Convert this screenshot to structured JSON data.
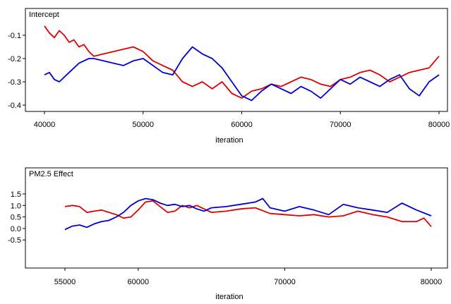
{
  "chart_data": [
    {
      "type": "line",
      "title": "Intercept",
      "xlabel": "iteration",
      "ylabel": "",
      "xlim": [
        40000,
        80000
      ],
      "ylim": [
        -0.45,
        0.0
      ],
      "xticks": [
        40000,
        50000,
        60000,
        70000,
        80000
      ],
      "xtick_labels": [
        "40000",
        "50000",
        "60000",
        "70000",
        "80000"
      ],
      "yticks": [
        -0.1,
        -0.2,
        -0.3,
        -0.4
      ],
      "ytick_labels": [
        "-0.1",
        "-0.2",
        "-0.3",
        "-0.4"
      ],
      "grid": false,
      "series": [
        {
          "color": "#e00000",
          "x": [
            40000,
            40500,
            41000,
            41500,
            42000,
            42500,
            43000,
            43500,
            44000,
            44500,
            45000,
            46000,
            47000,
            48000,
            49000,
            50000,
            51000,
            52000,
            53000,
            54000,
            55000,
            56000,
            57000,
            58000,
            59000,
            60000,
            61000,
            62000,
            63000,
            64000,
            65000,
            66000,
            67000,
            68000,
            69000,
            70000,
            71000,
            72000,
            73000,
            74000,
            75000,
            76000,
            77000,
            78000,
            79000,
            80000
          ],
          "y": [
            -0.06,
            -0.09,
            -0.11,
            -0.08,
            -0.1,
            -0.13,
            -0.12,
            -0.15,
            -0.14,
            -0.17,
            -0.19,
            -0.18,
            -0.17,
            -0.16,
            -0.15,
            -0.17,
            -0.21,
            -0.23,
            -0.25,
            -0.3,
            -0.32,
            -0.3,
            -0.33,
            -0.3,
            -0.35,
            -0.37,
            -0.34,
            -0.33,
            -0.31,
            -0.32,
            -0.3,
            -0.28,
            -0.29,
            -0.31,
            -0.32,
            -0.29,
            -0.28,
            -0.26,
            -0.25,
            -0.27,
            -0.3,
            -0.28,
            -0.26,
            -0.25,
            -0.24,
            -0.19
          ]
        },
        {
          "color": "#0000d0",
          "x": [
            40000,
            40500,
            41000,
            41500,
            42000,
            42500,
            43000,
            43500,
            44000,
            44500,
            45000,
            46000,
            47000,
            48000,
            49000,
            50000,
            51000,
            52000,
            53000,
            54000,
            55000,
            56000,
            57000,
            58000,
            59000,
            60000,
            61000,
            62000,
            63000,
            64000,
            65000,
            66000,
            67000,
            68000,
            69000,
            70000,
            71000,
            72000,
            73000,
            74000,
            75000,
            76000,
            77000,
            78000,
            79000,
            80000
          ],
          "y": [
            -0.27,
            -0.26,
            -0.29,
            -0.3,
            -0.28,
            -0.26,
            -0.24,
            -0.22,
            -0.21,
            -0.2,
            -0.2,
            -0.21,
            -0.22,
            -0.23,
            -0.21,
            -0.2,
            -0.23,
            -0.26,
            -0.27,
            -0.2,
            -0.15,
            -0.18,
            -0.2,
            -0.24,
            -0.3,
            -0.36,
            -0.38,
            -0.34,
            -0.31,
            -0.33,
            -0.35,
            -0.32,
            -0.34,
            -0.37,
            -0.33,
            -0.29,
            -0.31,
            -0.28,
            -0.3,
            -0.32,
            -0.29,
            -0.27,
            -0.33,
            -0.36,
            -0.3,
            -0.27
          ]
        }
      ]
    },
    {
      "type": "line",
      "title": "PM2.5 Effect",
      "xlabel": "iteration",
      "ylabel": "",
      "xlim": [
        55000,
        80000
      ],
      "ylim": [
        -0.7,
        1.85
      ],
      "xticks": [
        55000,
        60000,
        70000,
        80000
      ],
      "xtick_labels": [
        "55000",
        "60000",
        "70000",
        "80000"
      ],
      "yticks": [
        1.5,
        1.0,
        0.5,
        0.0,
        -0.5
      ],
      "ytick_labels": [
        "1.5",
        "1.0",
        "0.5",
        "0.0",
        "-0.5"
      ],
      "grid": false,
      "series": [
        {
          "color": "#e00000",
          "x": [
            55000,
            55500,
            56000,
            56500,
            57000,
            57500,
            58000,
            58500,
            59000,
            59500,
            60000,
            60500,
            61000,
            61500,
            62000,
            62500,
            63000,
            63500,
            64000,
            64500,
            65000,
            66000,
            67000,
            68000,
            69000,
            70000,
            71000,
            72000,
            73000,
            74000,
            75000,
            76000,
            77000,
            78000,
            79000,
            79500,
            80000
          ],
          "y": [
            0.95,
            1.0,
            0.95,
            0.7,
            0.75,
            0.8,
            0.7,
            0.6,
            0.45,
            0.5,
            0.8,
            1.15,
            1.2,
            0.95,
            0.7,
            0.75,
            1.0,
            0.9,
            1.0,
            0.85,
            0.7,
            0.75,
            0.85,
            0.9,
            0.65,
            0.6,
            0.55,
            0.6,
            0.5,
            0.55,
            0.75,
            0.6,
            0.5,
            0.3,
            0.3,
            0.45,
            0.08
          ]
        },
        {
          "color": "#0000d0",
          "x": [
            55000,
            55500,
            56000,
            56500,
            57000,
            57500,
            58000,
            58500,
            59000,
            59500,
            60000,
            60500,
            61000,
            61500,
            62000,
            62500,
            63000,
            63500,
            64000,
            64500,
            65000,
            66000,
            67000,
            68000,
            68500,
            69000,
            70000,
            71000,
            72000,
            73000,
            74000,
            75000,
            76000,
            77000,
            78000,
            79000,
            80000
          ],
          "y": [
            -0.05,
            0.1,
            0.15,
            0.05,
            0.2,
            0.3,
            0.35,
            0.5,
            0.7,
            1.0,
            1.2,
            1.3,
            1.25,
            1.1,
            1.0,
            1.05,
            0.95,
            1.0,
            0.85,
            0.75,
            0.9,
            0.95,
            1.05,
            1.15,
            1.3,
            0.9,
            0.75,
            0.95,
            0.8,
            0.6,
            1.05,
            0.9,
            0.8,
            0.7,
            1.1,
            0.8,
            0.55
          ]
        }
      ]
    }
  ]
}
